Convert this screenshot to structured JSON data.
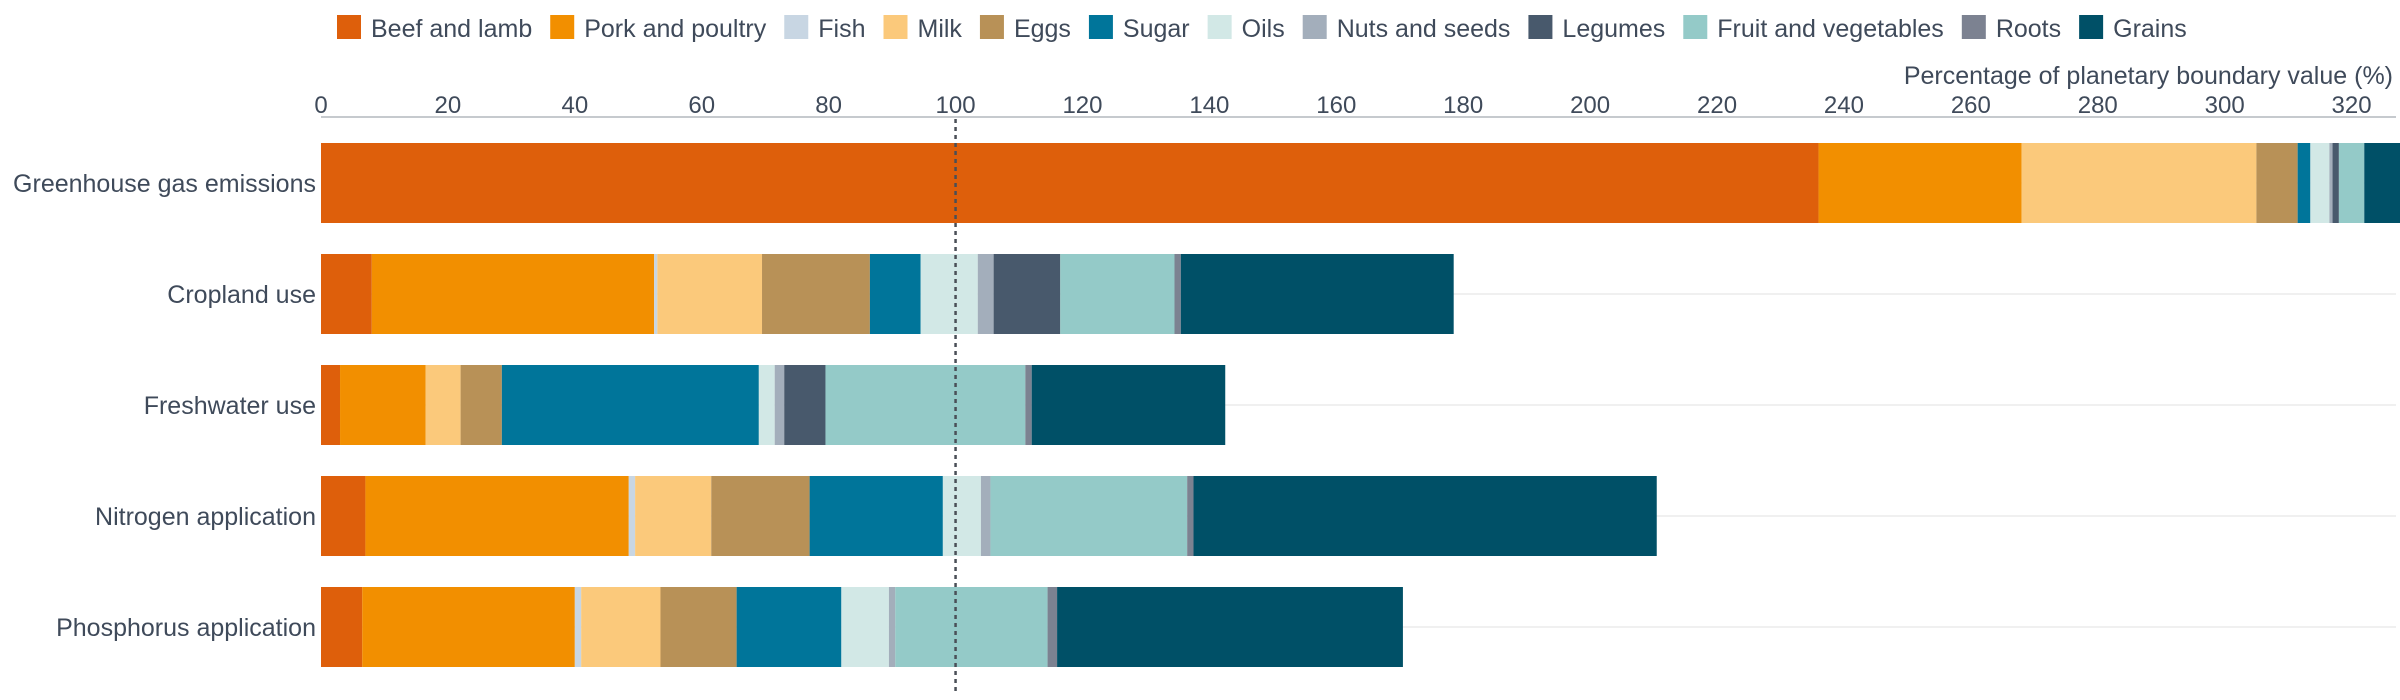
{
  "chart_data": {
    "type": "bar",
    "orientation": "horizontal",
    "stacked": true,
    "xlabel": "Percentage of planetary boundary value (%)",
    "xlim": [
      0,
      327
    ],
    "x_ticks": [
      0,
      20,
      40,
      60,
      80,
      100,
      120,
      140,
      160,
      180,
      200,
      220,
      240,
      260,
      280,
      300,
      320
    ],
    "reference_line": 100,
    "legend_position": "top",
    "categories": [
      "Greenhouse gas emissions",
      "Cropland use",
      "Freshwater use",
      "Nitrogen application",
      "Phosphorus application"
    ],
    "series": [
      {
        "name": "Beef and lamb",
        "color": "#de5f0b",
        "values": [
          236,
          8,
          3,
          7,
          6.5
        ]
      },
      {
        "name": "Pork and poultry",
        "color": "#f28f00",
        "values": [
          32,
          44.5,
          13.5,
          41.5,
          33.5
        ]
      },
      {
        "name": "Fish",
        "color": "#c8d6e3",
        "values": [
          0,
          0.5,
          0,
          1,
          1
        ]
      },
      {
        "name": "Milk",
        "color": "#fbc97b",
        "values": [
          37,
          16.5,
          5.5,
          12,
          12.5
        ]
      },
      {
        "name": "Eggs",
        "color": "#b89157",
        "values": [
          6.5,
          17,
          6.5,
          15.5,
          12
        ]
      },
      {
        "name": "Sugar",
        "color": "#00759a",
        "values": [
          2,
          8,
          40.5,
          21,
          16.5
        ]
      },
      {
        "name": "Oils",
        "color": "#d2e8e6",
        "values": [
          3,
          9,
          2.5,
          6,
          7.5
        ]
      },
      {
        "name": "Nuts and seeds",
        "color": "#a3aebb",
        "values": [
          0.5,
          2.5,
          1.5,
          1.5,
          1
        ]
      },
      {
        "name": "Legumes",
        "color": "#48596c",
        "values": [
          1,
          10.5,
          6.5,
          0,
          0
        ]
      },
      {
        "name": "Fruit and vegetables",
        "color": "#94cac8",
        "values": [
          4,
          18,
          31.5,
          31,
          24
        ]
      },
      {
        "name": "Roots",
        "color": "#7c8291",
        "values": [
          0,
          1,
          1,
          1,
          1.5
        ]
      },
      {
        "name": "Grains",
        "color": "#005067",
        "values": [
          6,
          43,
          30.5,
          73,
          54.5
        ]
      }
    ]
  }
}
